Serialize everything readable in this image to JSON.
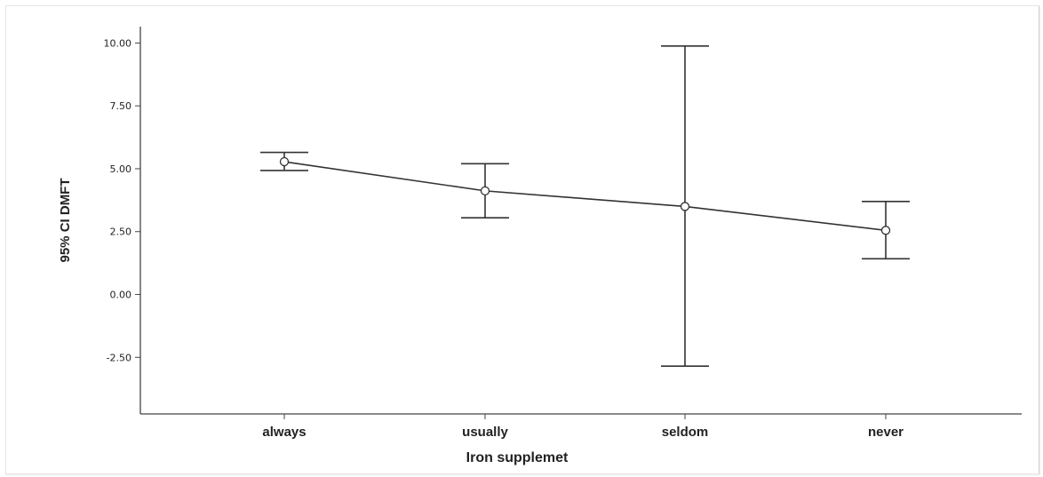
{
  "chart_data": {
    "type": "line",
    "title": "",
    "xlabel": "Iron supplemet",
    "ylabel": "95% CI DMFT",
    "categories": [
      "always",
      "usually",
      "seldom",
      "never"
    ],
    "series": [
      {
        "mean": 5.28,
        "lower": 4.93,
        "upper": 5.65,
        "category": "always"
      },
      {
        "mean": 4.12,
        "lower": 3.05,
        "upper": 5.2,
        "category": "usually"
      },
      {
        "mean": 3.5,
        "lower": -2.85,
        "upper": 9.88,
        "category": "seldom"
      },
      {
        "mean": 2.55,
        "lower": 1.42,
        "upper": 3.7,
        "category": "never"
      }
    ],
    "yticks": [
      10.0,
      7.5,
      5.0,
      2.5,
      0.0,
      -2.5
    ],
    "ytick_labels": [
      "10.00",
      "7.50",
      "5.00",
      "2.50",
      "0.00",
      "-2.50"
    ],
    "ylim": [
      -4.75,
      10.65
    ],
    "grid": false,
    "legend": "none",
    "colors": {
      "line": "#333333",
      "axis": "#444444",
      "text": "#222222"
    }
  }
}
